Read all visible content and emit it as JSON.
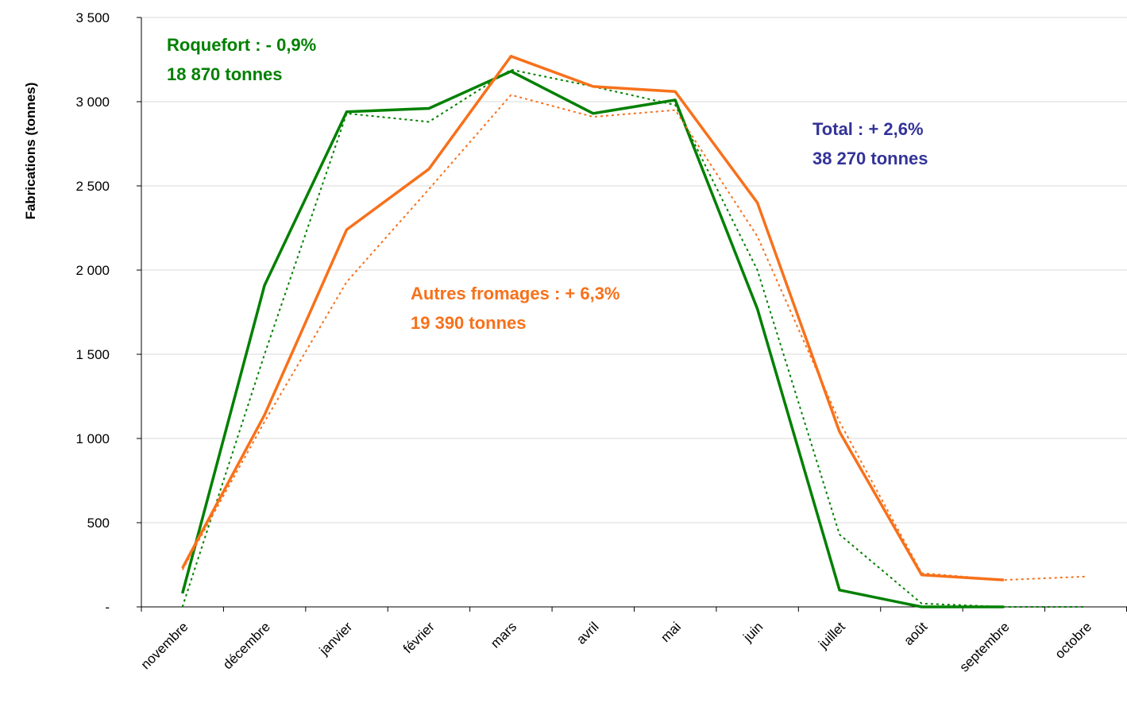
{
  "chart_data": {
    "type": "line",
    "y_label": "Fabrications (tonnes)",
    "categories": [
      "novembre",
      "décembre",
      "janvier",
      "février",
      "mars",
      "avril",
      "mai",
      "juin",
      "juillet",
      "août",
      "septembre",
      "octobre"
    ],
    "series": [
      {
        "color": "#008000",
        "style": "solid",
        "values": [
          80,
          1910,
          2940,
          2960,
          3180,
          2930,
          3010,
          1770,
          100,
          0,
          0,
          null
        ]
      },
      {
        "color": "#008000",
        "style": "dotted",
        "values": [
          0,
          1500,
          2930,
          2880,
          3190,
          3090,
          2980,
          2000,
          430,
          20,
          0,
          0
        ]
      },
      {
        "color": "#f7711b",
        "style": "solid",
        "values": [
          230,
          1140,
          2240,
          2600,
          3270,
          3090,
          3060,
          2400,
          1040,
          190,
          160,
          null
        ]
      },
      {
        "color": "#f7711b",
        "style": "dotted",
        "values": [
          220,
          1100,
          1930,
          2480,
          3040,
          2910,
          2950,
          2200,
          1100,
          200,
          160,
          180
        ]
      }
    ],
    "ylim": [
      0,
      3500
    ],
    "yticks": [
      {
        "value": 0,
        "label": "-"
      },
      500,
      {
        "value": 1000,
        "label": "1 000"
      },
      {
        "value": 1500,
        "label": "1 500"
      },
      {
        "value": 2000,
        "label": "2 000"
      },
      {
        "value": 2500,
        "label": "2 500"
      },
      {
        "value": 3000,
        "label": "3 000"
      },
      {
        "value": 3500,
        "label": "3 500"
      }
    ],
    "grid": true,
    "annotations": [
      {
        "lines": [
          "Roquefort :  - 0,9%",
          "18 870 tonnes"
        ],
        "color": "#008000"
      },
      {
        "lines": [
          "Total : + 2,6%",
          "38 270 tonnes"
        ],
        "color": "#333399"
      },
      {
        "lines": [
          "Autres fromages : + 6,3%",
          "19 390 tonnes"
        ],
        "color": "#f7711b"
      }
    ]
  }
}
